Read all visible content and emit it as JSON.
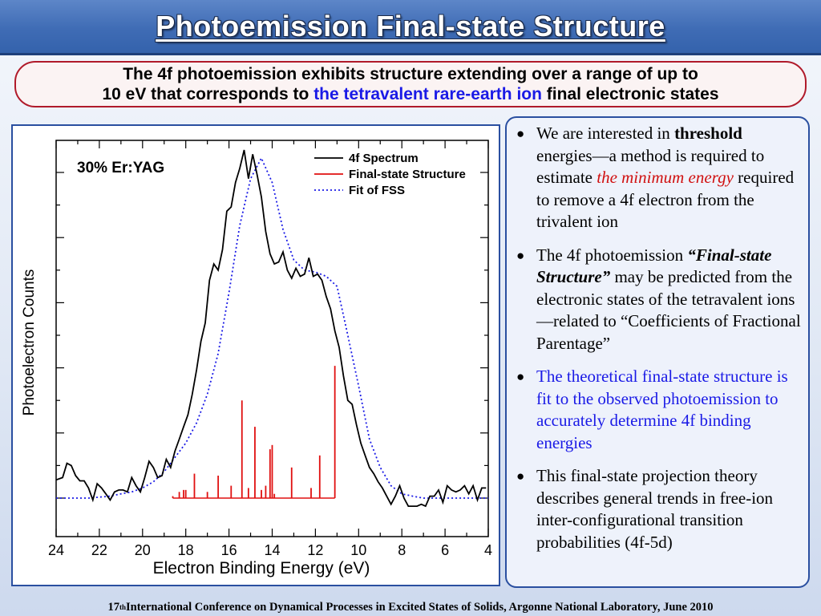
{
  "title": "Photoemission Final-state Structure",
  "subtitle": {
    "line1": "The 4f photoemission exhibits structure extending over a range of up to",
    "line2_pre": "10 eV that corresponds to ",
    "line2_blue": "the tetravalent rare-earth ion",
    "line2_post": " final electronic states"
  },
  "bullets": [
    {
      "parts": [
        "We are interested in ",
        "threshold",
        " energies—a method is required to estimate ",
        "the minimum energy",
        " required to remove a 4f electron from the trivalent ion"
      ]
    },
    {
      "parts": [
        "The 4f photoemission ",
        "“Final-state Structure”",
        " may be predicted from the electronic states of the tetravalent ions—related to “Coefficients of Fractional Parentage”"
      ]
    },
    {
      "text": "The theoretical final-state structure is fit to the observed photoemission to accurately determine 4f binding energies"
    },
    {
      "text": "This final-state projection theory describes general trends in free-ion inter-configurational transition probabilities (4f-5d)"
    }
  ],
  "footer": {
    "pre": "17",
    "sup": "th",
    "post": " International Conference on Dynamical Processes in Excited States of Solids, Argonne National Laboratory, June 2010"
  },
  "colors": {
    "spectrum": "#000000",
    "fss": "#e01010",
    "fit": "#1a1ae6"
  },
  "chart_data": {
    "type": "line",
    "annotation": "30% Er:YAG",
    "xlabel": "Electron Binding Energy (eV)",
    "ylabel": "Photoelectron Counts",
    "xlim": [
      24,
      4
    ],
    "xticks": [
      "24",
      "22",
      "20",
      "18",
      "16",
      "14",
      "12",
      "10",
      "8",
      "6",
      "4"
    ],
    "ylim": [
      0,
      100
    ],
    "legend_position": "top-right",
    "series": [
      {
        "name": "4f Spectrum",
        "style": "solid",
        "x": [
          24.0,
          23.7,
          23.5,
          23.3,
          23.1,
          22.9,
          22.7,
          22.5,
          22.3,
          22.1,
          21.9,
          21.7,
          21.5,
          21.3,
          21.1,
          20.9,
          20.7,
          20.5,
          20.3,
          20.1,
          19.9,
          19.7,
          19.5,
          19.3,
          19.1,
          18.9,
          18.7,
          18.5,
          18.3,
          18.1,
          17.9,
          17.7,
          17.5,
          17.3,
          17.1,
          16.9,
          16.7,
          16.5,
          16.3,
          16.1,
          15.9,
          15.7,
          15.5,
          15.3,
          15.1,
          14.9,
          14.7,
          14.5,
          14.3,
          14.1,
          13.9,
          13.7,
          13.5,
          13.3,
          13.1,
          12.9,
          12.7,
          12.5,
          12.3,
          12.1,
          11.9,
          11.7,
          11.5,
          11.3,
          11.1,
          10.9,
          10.7,
          10.5,
          10.3,
          10.1,
          9.9,
          9.7,
          9.5,
          9.3,
          9.1,
          8.9,
          8.7,
          8.5,
          8.3,
          8.1,
          7.9,
          7.7,
          7.5,
          7.3,
          7.1,
          6.9,
          6.7,
          6.5,
          6.3,
          6.1,
          5.9,
          5.7,
          5.5,
          5.3,
          5.1,
          4.9,
          4.7,
          4.5,
          4.3,
          4.1
        ],
        "y": [
          5.6,
          6.3,
          10.7,
          10.0,
          6.9,
          5.3,
          5.3,
          3.1,
          -0.6,
          4.4,
          3.1,
          1.3,
          -0.6,
          1.9,
          2.5,
          2.5,
          1.9,
          6.3,
          3.8,
          1.9,
          6.3,
          11.3,
          9.4,
          6.3,
          6.9,
          11.9,
          9.4,
          14.4,
          18.1,
          21.9,
          25.6,
          31.9,
          39.4,
          48.1,
          53.8,
          66.9,
          71.9,
          70.0,
          76.3,
          88.1,
          89.4,
          96.9,
          101.3,
          106.9,
          98.1,
          105.6,
          99.4,
          92.5,
          81.9,
          75.0,
          71.9,
          72.5,
          75.6,
          70.0,
          67.5,
          70.6,
          68.1,
          68.8,
          73.8,
          68.1,
          68.8,
          66.9,
          61.9,
          58.1,
          51.3,
          46.3,
          37.5,
          30.0,
          28.8,
          22.5,
          16.9,
          13.1,
          9.4,
          7.5,
          5.0,
          3.1,
          0.6,
          -1.9,
          0.6,
          3.8,
          0.0,
          -2.5,
          -2.5,
          -2.5,
          -1.9,
          -2.5,
          0.6,
          0.6,
          2.5,
          -1.3,
          3.8,
          2.5,
          1.9,
          2.5,
          3.8,
          1.3,
          3.8,
          -0.6,
          3.1,
          3.1
        ]
      },
      {
        "name": "Final-state Structure",
        "style": "solid",
        "type": "sticks",
        "x": [
          18.6,
          18.3,
          18.1,
          18.0,
          17.6,
          17.0,
          16.5,
          15.9,
          15.4,
          15.1,
          14.8,
          14.5,
          14.3,
          14.1,
          14.0,
          13.9,
          13.1,
          12.2,
          11.8,
          11.1
        ],
        "y": [
          0.6,
          1.9,
          2.5,
          2.5,
          7.5,
          1.9,
          6.9,
          3.8,
          30.0,
          3.1,
          21.9,
          2.5,
          3.8,
          15.0,
          16.3,
          1.3,
          9.4,
          3.1,
          13.1,
          40.6
        ]
      },
      {
        "name": "Fit of FSS",
        "style": "dotted",
        "x": [
          24.0,
          23.5,
          23.0,
          22.5,
          22.0,
          21.5,
          21.0,
          20.5,
          20.0,
          19.5,
          19.0,
          18.5,
          18.0,
          17.5,
          17.0,
          16.5,
          16.0,
          15.5,
          15.0,
          14.5,
          14.0,
          13.5,
          13.0,
          12.5,
          12.0,
          11.5,
          11.0,
          10.5,
          10.0,
          9.5,
          9.0,
          8.5,
          8.0,
          7.5,
          7.0,
          6.5,
          6.0,
          5.5,
          5.0,
          4.5,
          4.0
        ],
        "y": [
          0.0,
          0.0,
          0.0,
          0.0,
          0.3,
          0.6,
          1.3,
          1.9,
          3.1,
          5.0,
          8.1,
          12.5,
          16.9,
          23.1,
          31.9,
          44.4,
          63.1,
          83.8,
          98.1,
          104.4,
          96.9,
          82.5,
          73.1,
          70.0,
          69.4,
          68.1,
          65.0,
          50.0,
          34.4,
          18.1,
          9.4,
          3.8,
          1.3,
          0.6,
          0.0,
          0.0,
          0.0,
          0.0,
          0.0,
          0.0,
          0.0
        ]
      }
    ]
  }
}
